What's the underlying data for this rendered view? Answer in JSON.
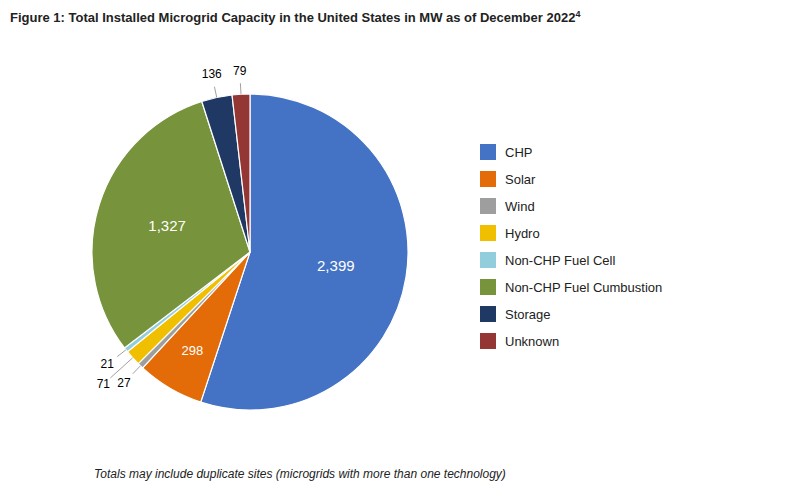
{
  "chart_data": {
    "type": "pie",
    "title": "Figure 1: Total Installed Microgrid Capacity in the United States in MW as of December 2022",
    "title_superscript": "4",
    "footnote": "Totals may include duplicate sites (microgrids with more than one technology)",
    "categories": [
      "CHP",
      "Solar",
      "Wind",
      "Hydro",
      "Non-CHP Fuel Cell",
      "Non-CHP Fuel Cumbustion",
      "Storage",
      "Unknown"
    ],
    "values": [
      2399,
      298,
      27,
      71,
      21,
      1327,
      136,
      79
    ],
    "value_labels": [
      "2,399",
      "298",
      "27",
      "71",
      "21",
      "1,327",
      "136",
      "79"
    ],
    "colors": [
      "#4472C4",
      "#E36C09",
      "#9E9E9E",
      "#F0C000",
      "#92CDDC",
      "#77933C",
      "#1F3864",
      "#943634"
    ],
    "data_labels": true,
    "legend": "right"
  }
}
